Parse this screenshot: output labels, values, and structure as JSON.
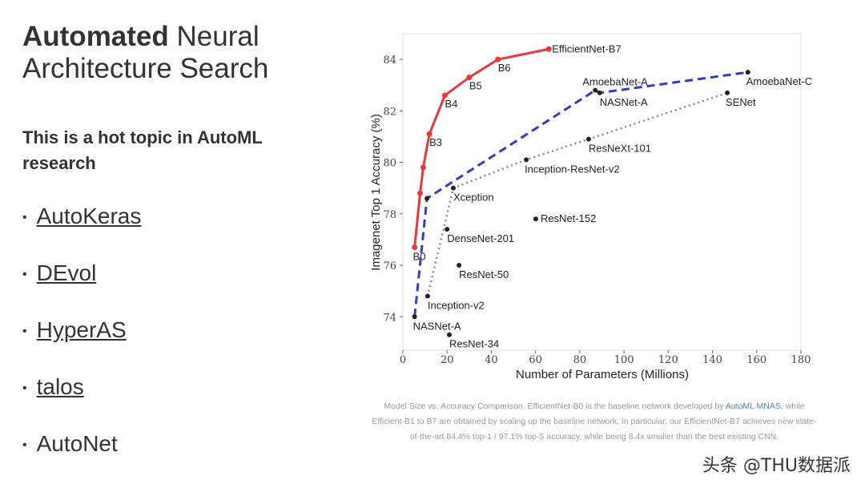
{
  "slide": {
    "title": {
      "bold": "Automated",
      "rest": "Neural",
      "line2": "Architecture Search"
    },
    "subtitle": "This is a hot topic in AutoML research",
    "bullets": [
      {
        "text": "AutoKeras",
        "link": true
      },
      {
        "text": "DEvol",
        "link": true
      },
      {
        "text": "HyperAS",
        "link": true
      },
      {
        "text": "talos",
        "link": true
      },
      {
        "text": "AutoNet",
        "link": false
      }
    ],
    "caption": {
      "before": "Model Size vs. Accuracy Comparison. EfficientNet-B0 is the baseline network developed by",
      "link": "AutoML MNAS",
      "after": ", while Efficient-B1 to B7 are obtained by scaling up the baseline network. In particular, our EfficientNet-B7 achieves new state-of-the-art 84.4% top-1 / 97.1% top-5 accuracy, while being 8.4x smaller than the best existing CNN."
    },
    "watermark": "头条 @THU数据派"
  },
  "chart_data": {
    "type": "line",
    "x_label": "Number of Parameters (Millions)",
    "y_label": "Imagenet Top 1 Accuracy (%)",
    "xlim": [
      0,
      180
    ],
    "xticks": [
      0,
      20,
      40,
      60,
      80,
      100,
      120,
      140,
      160,
      180
    ],
    "ylim": [
      72.7,
      85
    ],
    "yticks": [
      74,
      76,
      78,
      80,
      82,
      84
    ],
    "series": [
      {
        "color": "#e8383d",
        "style": "solid",
        "x": [
          5.3,
          7.8,
          9.2,
          12,
          19,
          30,
          43,
          66
        ],
        "values": [
          76.7,
          78.8,
          79.8,
          81.1,
          82.6,
          83.3,
          84.0,
          84.4
        ],
        "labels": [
          "B0",
          null,
          null,
          "B3",
          "B4",
          "B5",
          "B6",
          "EfficientNet-B7"
        ]
      },
      {
        "color": "#2f3fc4",
        "style": "dashed",
        "x": [
          5.3,
          10.9,
          87,
          89,
          156
        ],
        "values": [
          74.0,
          78.6,
          82.8,
          82.7,
          83.5
        ],
        "labels": [
          "NASNet-A",
          null,
          "AmoebaNet-A",
          "NASNet-A",
          "AmoebaNet-C"
        ]
      },
      {
        "color": "#888888",
        "style": "dotted",
        "x": [
          11.2,
          22.8,
          55.8,
          84,
          146.7
        ],
        "values": [
          74.8,
          79.0,
          80.1,
          80.9,
          82.7
        ],
        "labels": [
          "Inception-v2",
          "Xception",
          "Inception-ResNet-v2",
          "ResNeXt-101",
          "SENet"
        ]
      },
      {
        "color": "#222222",
        "style": "none",
        "x": [
          20,
          60.1,
          25.4,
          21
        ],
        "values": [
          77.4,
          77.8,
          76.0,
          73.3
        ],
        "labels": [
          "DenseNet-201",
          "ResNet-152",
          "ResNet-50",
          "ResNet-34"
        ]
      }
    ]
  }
}
